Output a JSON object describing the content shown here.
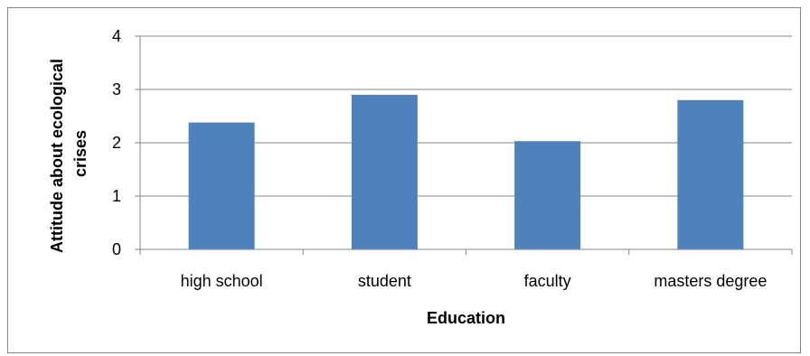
{
  "chart_data": {
    "type": "bar",
    "categories": [
      "high school",
      "student",
      "faculty",
      "masters degree"
    ],
    "values": [
      2.38,
      2.9,
      2.03,
      2.8
    ],
    "title": "",
    "xlabel": "Education",
    "ylabel_lines": [
      "Attitude about ecological",
      "crises"
    ],
    "ylim": [
      0,
      4
    ],
    "yticks": [
      "0",
      "1",
      "2",
      "3",
      "4"
    ],
    "grid": true,
    "legend": "none",
    "bar_color": "#4f81bd",
    "grid_color": "#868686"
  }
}
